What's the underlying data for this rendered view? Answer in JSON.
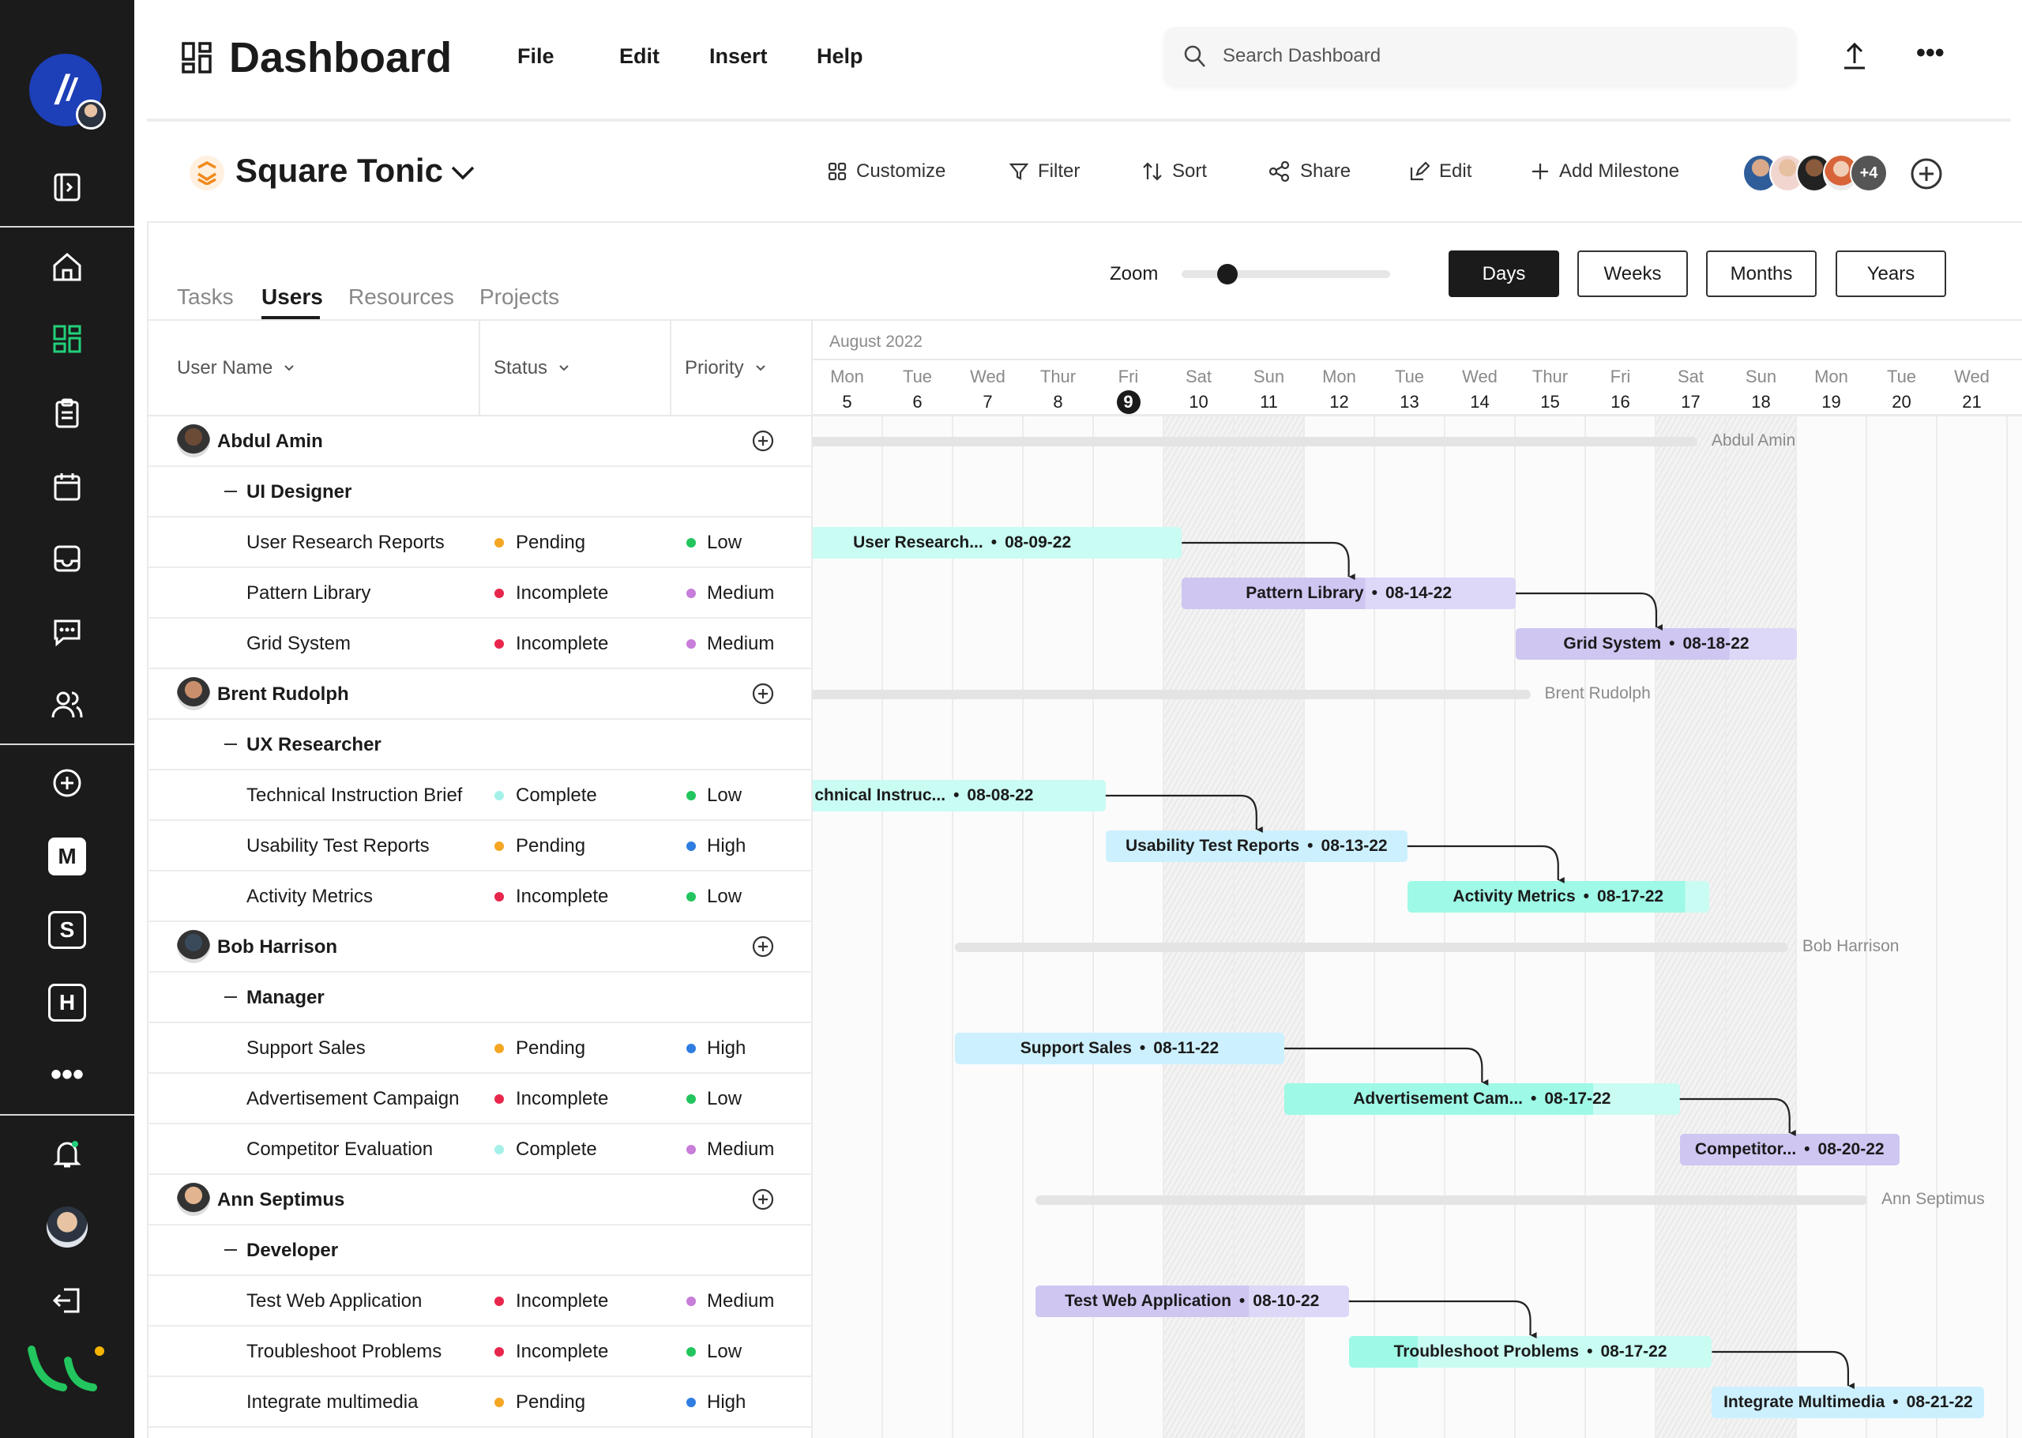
{
  "header": {
    "title": "Dashboard",
    "menu": [
      "File",
      "Edit",
      "Insert",
      "Help"
    ],
    "search_placeholder": "Search Dashboard"
  },
  "project": {
    "name": "Square Tonic",
    "toolbar": [
      "Customize",
      "Filter",
      "Sort",
      "Share",
      "Edit",
      "Add Milestone"
    ],
    "avatars_more": "+4"
  },
  "tabs": [
    "Tasks",
    "Users",
    "Resources",
    "Projects"
  ],
  "active_tab": "Users",
  "zoom": {
    "label": "Zoom",
    "level": 0.2
  },
  "views": [
    "Days",
    "Weeks",
    "Months",
    "Years"
  ],
  "active_view": "Days",
  "columns": [
    "User Name",
    "Status",
    "Priority"
  ],
  "status_colors": {
    "Pending": "#f5a623",
    "Incomplete": "#e8264b",
    "Complete": "#a4f1ea"
  },
  "priority_colors": {
    "Low": "#22c55e",
    "Medium": "#c77dd9",
    "High": "#2f7de1"
  },
  "bar_colors": {
    "cyan": [
      "#c9fcf3",
      "#c9fcf3"
    ],
    "purple": [
      "#cfc6f2",
      "#ddd7f8"
    ],
    "blue": [
      "#cdf0fe",
      "#cdf0fe"
    ],
    "teal": [
      "#9ef9e6",
      "#c9fcf3"
    ]
  },
  "gantt": {
    "month": "August 2022",
    "today": 9,
    "days": [
      [
        "Mon",
        "5"
      ],
      [
        "Tue",
        "6"
      ],
      [
        "Wed",
        "7"
      ],
      [
        "Thur",
        "8"
      ],
      [
        "Fri",
        "9"
      ],
      [
        "Sat",
        "10"
      ],
      [
        "Sun",
        "11"
      ],
      [
        "Mon",
        "12"
      ],
      [
        "Tue",
        "13"
      ],
      [
        "Wed",
        "14"
      ],
      [
        "Thur",
        "15"
      ],
      [
        "Fri",
        "16"
      ],
      [
        "Sat",
        "17"
      ],
      [
        "Sun",
        "18"
      ],
      [
        "Mon",
        "19"
      ],
      [
        "Tue",
        "20"
      ],
      [
        "Wed",
        "21"
      ]
    ],
    "weekends": [
      10,
      11,
      17,
      18
    ]
  },
  "users": [
    {
      "name": "Abdul Amin",
      "role": "UI Designer",
      "summary": [
        "2022-08-04T00:00",
        "2022-08-17T14:00"
      ],
      "tasks": [
        {
          "name": "User Research Reports",
          "status": "Pending",
          "priority": "Low",
          "bar": "User Research...",
          "date": "08-09-22",
          "start": "2022-08-04T00:00",
          "end": "2022-08-10T06:00",
          "color": "cyan",
          "progress": 1
        },
        {
          "name": "Pattern  Library",
          "status": "Incomplete",
          "priority": "Medium",
          "bar": "Pattern  Library",
          "date": "08-14-22",
          "start": "2022-08-10T06:00",
          "end": "2022-08-15T00:00",
          "color": "purple",
          "progress": 0.55
        },
        {
          "name": "Grid System",
          "status": "Incomplete",
          "priority": "Medium",
          "bar": "Grid System",
          "date": "08-18-22",
          "start": "2022-08-15T00:00",
          "end": "2022-08-19T00:00",
          "color": "purple",
          "progress": 0.76
        }
      ]
    },
    {
      "name": "Brent Rudolph",
      "role": "UX Researcher",
      "summary": [
        "2022-08-04T00:00",
        "2022-08-15T05:00"
      ],
      "tasks": [
        {
          "name": "Technical Instruction Brief",
          "status": "Complete",
          "priority": "Low",
          "bar": "chnical Instruc...",
          "date": "08-08-22",
          "start": "2022-08-04T00:00",
          "end": "2022-08-09T04:00",
          "color": "cyan",
          "progress": 1
        },
        {
          "name": "Usability Test Reports",
          "status": "Pending",
          "priority": "High",
          "bar": "Usability Test Reports",
          "date": "08-13-22",
          "start": "2022-08-09T04:00",
          "end": "2022-08-13T11:00",
          "color": "blue",
          "progress": 1
        },
        {
          "name": "Activity Metrics",
          "status": "Incomplete",
          "priority": "Low",
          "bar": "Activity Metrics",
          "date": "08-17-22",
          "start": "2022-08-13T11:00",
          "end": "2022-08-17T18:00",
          "color": "teal",
          "progress": 0.92
        }
      ]
    },
    {
      "name": "Bob Harrison",
      "role": "Manager",
      "summary": [
        "2022-08-07T00:30",
        "2022-08-18T21:00"
      ],
      "tasks": [
        {
          "name": "Support Sales",
          "status": "Pending",
          "priority": "High",
          "bar": "Support Sales",
          "date": "08-11-22",
          "start": "2022-08-07T00:30",
          "end": "2022-08-11T17:00",
          "color": "blue",
          "progress": 1
        },
        {
          "name": "Advertisement Campaign",
          "status": "Incomplete",
          "priority": "Low",
          "bar": "Advertisement Cam...",
          "date": "08-17-22",
          "start": "2022-08-11T17:00",
          "end": "2022-08-17T08:00",
          "color": "teal",
          "progress": 0.78
        },
        {
          "name": "Competitor Evaluation",
          "status": "Complete",
          "priority": "Medium",
          "bar": "Competitor...",
          "date": "08-20-22",
          "start": "2022-08-17T08:00",
          "end": "2022-08-20T11:00",
          "color": "purple",
          "progress": 1
        }
      ]
    },
    {
      "name": "Ann Septimus",
      "role": "Developer",
      "summary": [
        "2022-08-08T04:00",
        "2022-08-20T00:00"
      ],
      "tasks": [
        {
          "name": "Test Web Application",
          "status": "Incomplete",
          "priority": "Medium",
          "bar": "Test Web Application",
          "date": "08-10-22",
          "start": "2022-08-08T04:00",
          "end": "2022-08-12T15:00",
          "color": "purple",
          "progress": 0.68
        },
        {
          "name": "Troubleshoot Problems",
          "status": "Incomplete",
          "priority": "Low",
          "bar": "Troubleshoot Problems",
          "date": "08-17-22",
          "start": "2022-08-12T15:00",
          "end": "2022-08-17T19:00",
          "color": "teal",
          "progress": 0.19
        },
        {
          "name": "Integrate multimedia",
          "status": "Pending",
          "priority": "High",
          "bar": "Integrate Multimedia",
          "date": "08-21-22",
          "start": "2022-08-17T19:00",
          "end": "2022-08-21T16:00",
          "color": "blue",
          "progress": 1
        }
      ]
    }
  ]
}
